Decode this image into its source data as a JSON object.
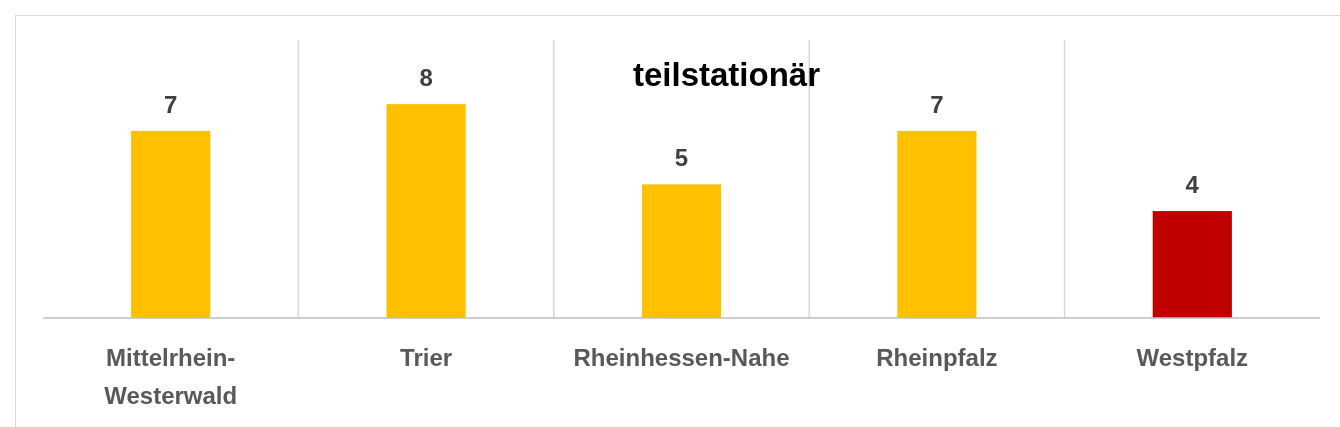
{
  "chart_data": {
    "type": "bar",
    "title": "teilstationär",
    "categories": [
      "Mittelrhein-Westerwald",
      "Trier",
      "Rheinhessen-Nahe",
      "Rheinpfalz",
      "Westpfalz"
    ],
    "values": [
      7,
      8,
      5,
      7,
      4
    ],
    "colors": [
      "#ffc000",
      "#ffc000",
      "#ffc000",
      "#ffc000",
      "#c00000"
    ],
    "ylim": [
      0,
      10.4
    ],
    "data_labels": true,
    "grid": "x",
    "tick_labels": "x"
  }
}
